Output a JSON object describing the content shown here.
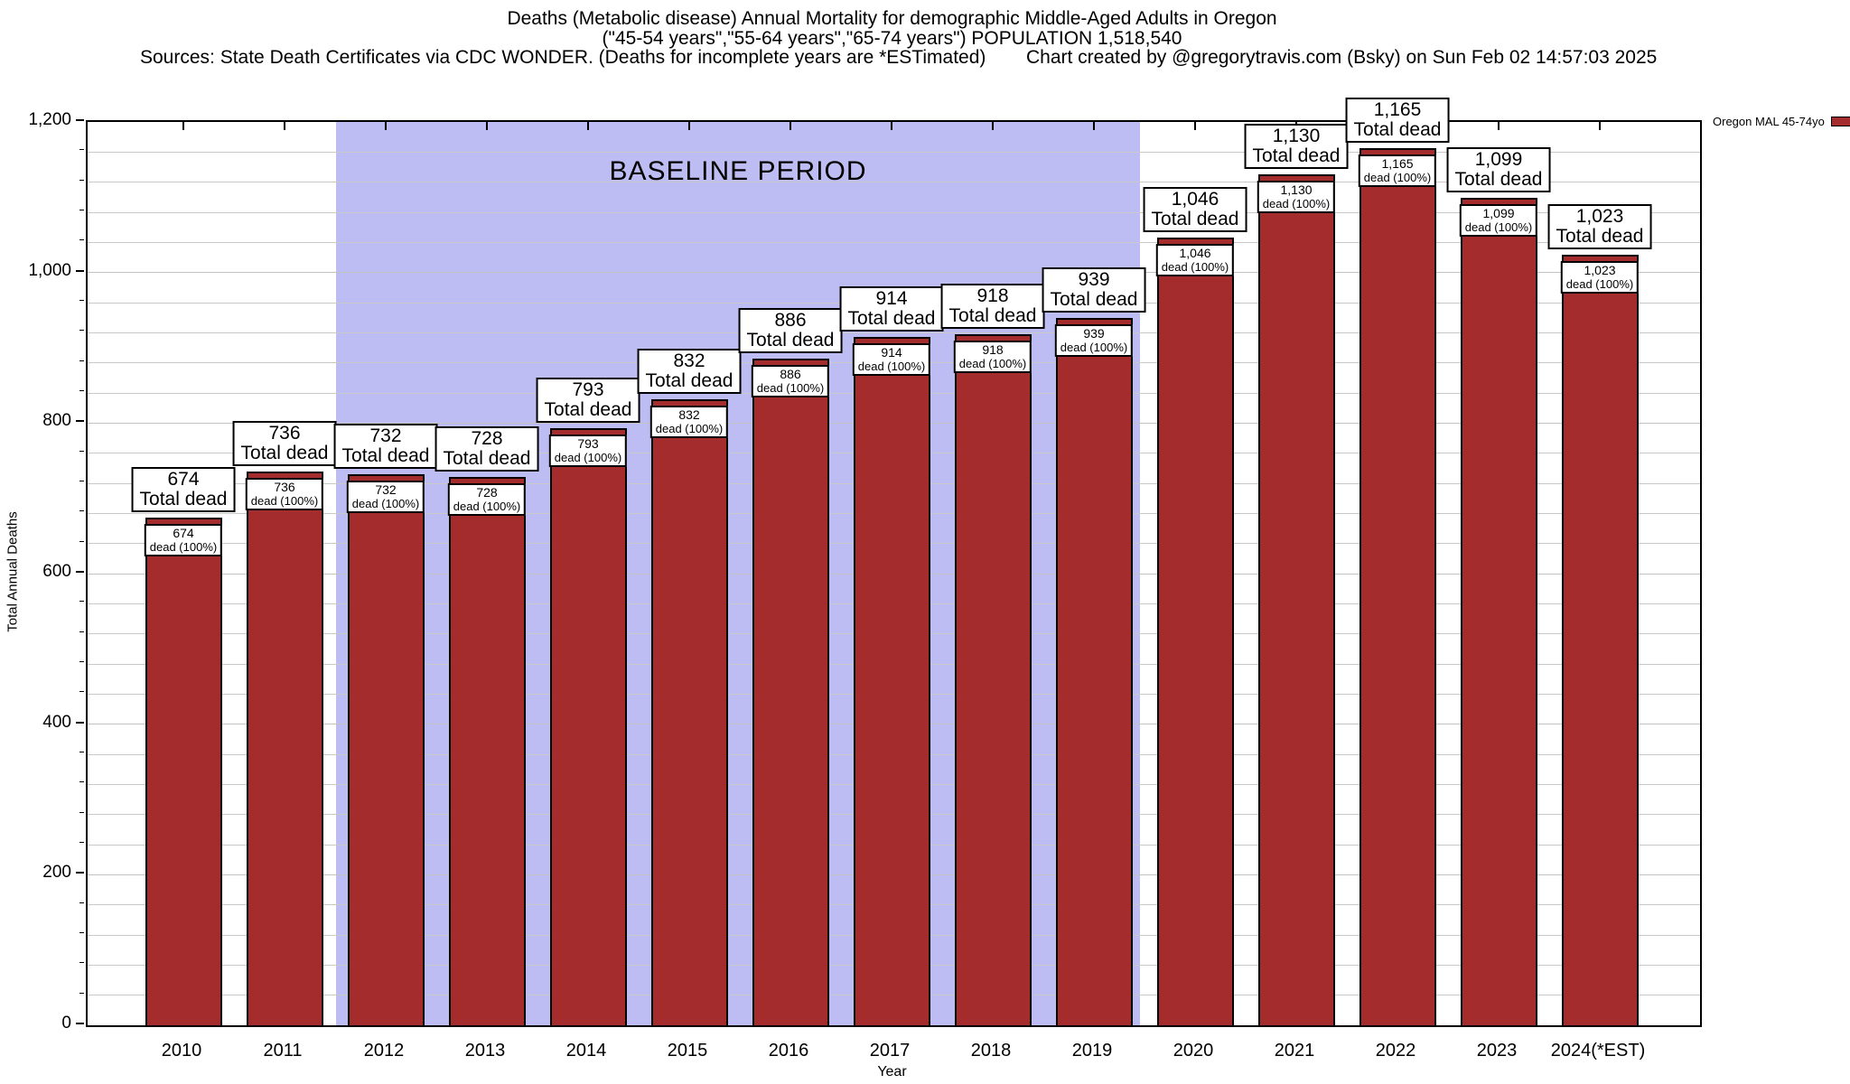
{
  "header": {
    "title_line1": "Deaths (Metabolic disease) Annual Mortality for demographic Middle-Aged Adults in Oregon",
    "title_line2": "(\"45-54 years\",\"55-64 years\",\"65-74 years\") POPULATION 1,518,540",
    "sources": "Sources: State Death Certificates via CDC WONDER. (Deaths for incomplete years are *ESTimated)",
    "credit": "Chart created by @gregorytravis.com (Bsky) on Sun Feb 02 14:57:03 2025"
  },
  "legend": {
    "label": "Oregon MAL 45-74yo",
    "swatch_color": "#a52c2c"
  },
  "chart_data": {
    "type": "bar",
    "title": "Deaths (Metabolic disease) Annual Mortality for demographic Middle-Aged Adults in Oregon (\"45-54 years\",\"55-64 years\",\"65-74 years\") POPULATION 1,518,540",
    "xlabel": "Year",
    "ylabel": "Total Annual Deaths",
    "categories": [
      "2010",
      "2011",
      "2012",
      "2013",
      "2014",
      "2015",
      "2016",
      "2017",
      "2018",
      "2019",
      "2020",
      "2021",
      "2022",
      "2023",
      "2024(*EST)"
    ],
    "values": [
      674,
      736,
      732,
      728,
      793,
      832,
      886,
      914,
      918,
      939,
      1046,
      1130,
      1165,
      1099,
      1023
    ],
    "value_labels": [
      "674",
      "736",
      "732",
      "728",
      "793",
      "832",
      "886",
      "914",
      "918",
      "939",
      "1,046",
      "1,130",
      "1,165",
      "1,099",
      "1,023"
    ],
    "outer_label_suffix": "Total dead",
    "inner_label_suffix": "dead (100%)",
    "series_name": "Oregon MAL 45-74yo",
    "ylim": [
      0,
      1200
    ],
    "y_major_step": 200,
    "y_minor_step": 40,
    "y_tick_labels": [
      "0",
      "200",
      "400",
      "600",
      "800",
      "1,000",
      "1,200"
    ],
    "grid": "on",
    "legend_position": "top-right-outside",
    "bar_color": "#a52c2c",
    "baseline_band": {
      "label": "BASELINE PERIOD",
      "color": "#bdbdf4",
      "from_year": "2012",
      "to_year": "2019"
    }
  }
}
